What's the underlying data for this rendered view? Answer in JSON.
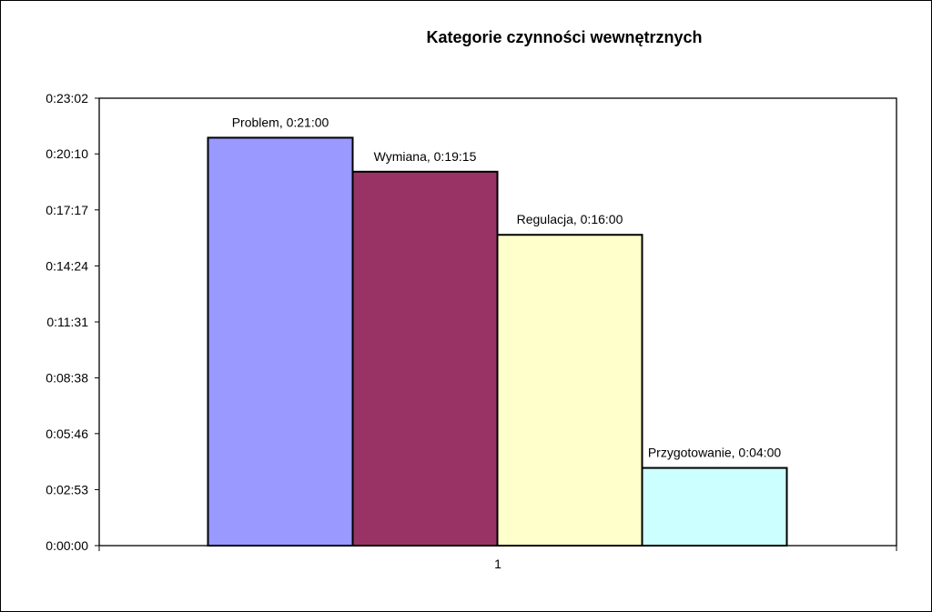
{
  "chart_data": {
    "type": "bar",
    "title": "Kategorie czynności wewnętrznych",
    "xlabel": "",
    "ylabel": "",
    "categories": [
      "1"
    ],
    "series": [
      {
        "name": "Problem",
        "value_seconds": 1260,
        "label": "Problem, 0:21:00",
        "color": "#9999FF"
      },
      {
        "name": "Wymiana",
        "value_seconds": 1155,
        "label": "Wymiana, 0:19:15",
        "color": "#993366"
      },
      {
        "name": "Regulacja",
        "value_seconds": 960,
        "label": "Regulacja, 0:16:00",
        "color": "#FFFFCC"
      },
      {
        "name": "Przygotowanie",
        "value_seconds": 240,
        "label": "Przygotowanie, 0:04:00",
        "color": "#CCFFFF"
      }
    ],
    "y_ticks": [
      {
        "seconds": 0,
        "label": "0:00:00"
      },
      {
        "seconds": 173,
        "label": "0:02:53"
      },
      {
        "seconds": 346,
        "label": "0:05:46"
      },
      {
        "seconds": 518,
        "label": "0:08:38"
      },
      {
        "seconds": 691,
        "label": "0:11:31"
      },
      {
        "seconds": 864,
        "label": "0:14:24"
      },
      {
        "seconds": 1037,
        "label": "0:17:17"
      },
      {
        "seconds": 1210,
        "label": "0:20:10"
      },
      {
        "seconds": 1382,
        "label": "0:23:02"
      }
    ],
    "ylim_seconds": [
      0,
      1382
    ],
    "grid": false,
    "legend": "none"
  }
}
